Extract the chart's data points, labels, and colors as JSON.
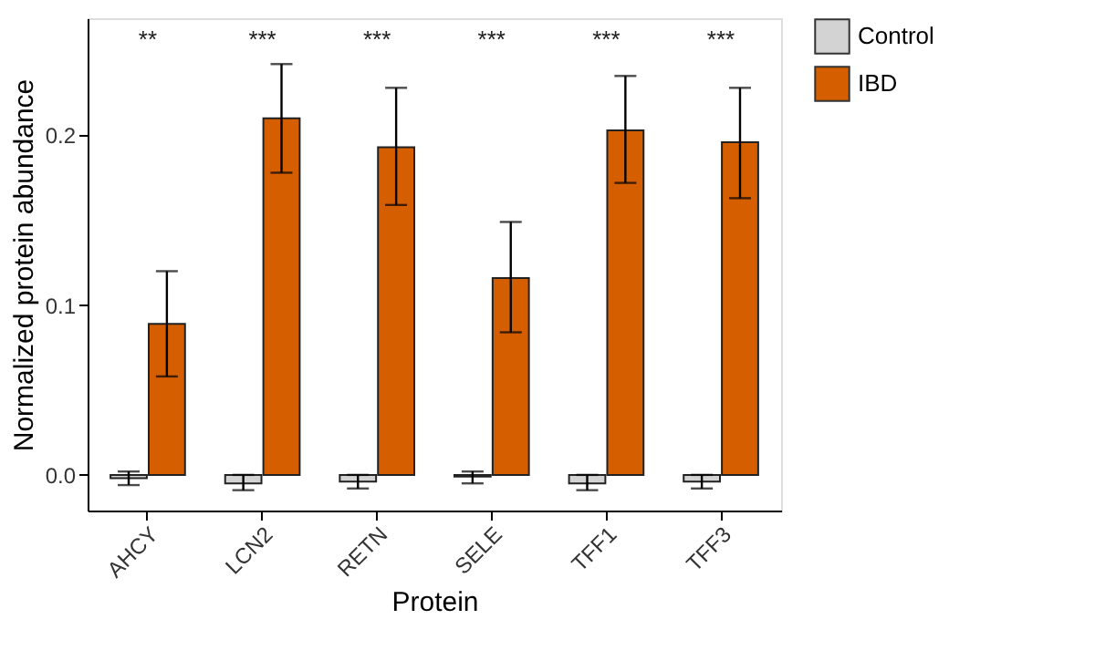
{
  "chart_data": {
    "type": "bar",
    "xlabel": "Protein",
    "ylabel": "Normalized protein abundance",
    "categories": [
      "AHCY",
      "LCN2",
      "RETN",
      "SELE",
      "TFF1",
      "TFF3"
    ],
    "series": [
      {
        "name": "Control",
        "color": "#d3d3d3",
        "values": [
          -0.002,
          -0.005,
          -0.004,
          -0.001,
          -0.005,
          -0.004
        ],
        "errors": [
          [
            -0.006,
            0.002
          ],
          [
            -0.009,
            0.0
          ],
          [
            -0.008,
            0.0
          ],
          [
            -0.005,
            0.002
          ],
          [
            -0.009,
            0.0
          ],
          [
            -0.008,
            0.0
          ]
        ]
      },
      {
        "name": "IBD",
        "color": "#d55e00",
        "values": [
          0.089,
          0.21,
          0.193,
          0.116,
          0.203,
          0.196
        ],
        "errors": [
          [
            0.058,
            0.12
          ],
          [
            0.178,
            0.242
          ],
          [
            0.159,
            0.228
          ],
          [
            0.084,
            0.149
          ],
          [
            0.172,
            0.235
          ],
          [
            0.163,
            0.228
          ]
        ]
      }
    ],
    "ylim": [
      -0.021,
      0.269
    ],
    "yticks": [
      {
        "value": 0,
        "label": "0.0"
      },
      0.1,
      0.2
    ],
    "annotations": [
      "**",
      "***",
      "***",
      "***",
      "***",
      "***"
    ],
    "legend": "right",
    "grid": false
  }
}
